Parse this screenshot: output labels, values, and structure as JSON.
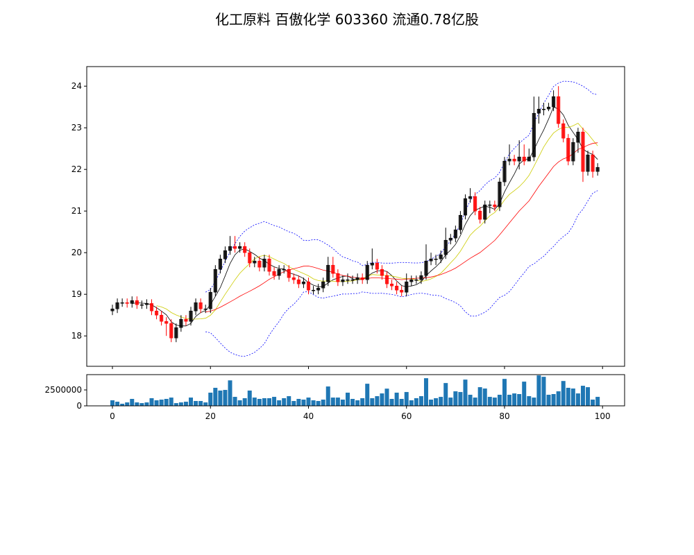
{
  "chart_data": {
    "type": "candlestick",
    "title": "化工原料 百傲化学 603360 流通0.78亿股",
    "colors": {
      "up": "#000000",
      "down": "#ff0000",
      "ma5": "#000000",
      "ma10": "#cccc00",
      "ma20": "#ff0000",
      "bollinger": "#0000ff",
      "volume": "#1f77b4"
    },
    "price_ylim": [
      17.27,
      24.47
    ],
    "volume_ylim": [
      0,
      4900000
    ],
    "xlim": [
      -5.24,
      104.5
    ],
    "price_yticks": [
      18,
      19,
      20,
      21,
      22,
      23,
      24
    ],
    "volume_yticks": [
      0,
      2500000
    ],
    "xticks": [
      0,
      20,
      40,
      60,
      80,
      100
    ],
    "overlays": [
      "MA5",
      "MA10",
      "MA20",
      "Bollinger(20,2)"
    ],
    "open": [
      18.6,
      18.65,
      18.8,
      18.8,
      18.78,
      18.85,
      18.75,
      18.75,
      18.78,
      18.6,
      18.5,
      18.35,
      18.3,
      17.95,
      18.2,
      18.4,
      18.35,
      18.6,
      18.8,
      18.65,
      18.65,
      19.05,
      19.6,
      19.85,
      20.05,
      20.15,
      20.1,
      20.15,
      20.0,
      19.75,
      19.8,
      19.65,
      19.85,
      19.55,
      19.45,
      19.6,
      19.6,
      19.4,
      19.35,
      19.25,
      19.3,
      19.1,
      19.1,
      19.15,
      19.3,
      19.7,
      19.5,
      19.3,
      19.35,
      19.35,
      19.35,
      19.4,
      19.35,
      19.7,
      19.75,
      19.6,
      19.45,
      19.25,
      19.2,
      19.1,
      19.05,
      19.3,
      19.35,
      19.35,
      19.45,
      19.8,
      19.85,
      19.85,
      19.95,
      20.3,
      20.35,
      20.55,
      20.9,
      21.3,
      21.35,
      21.0,
      20.8,
      21.15,
      21.15,
      21.1,
      21.7,
      22.2,
      22.25,
      22.2,
      22.3,
      22.2,
      22.3,
      23.35,
      23.45,
      23.45,
      23.5,
      23.75,
      23.1,
      22.75,
      22.2,
      22.65,
      22.9,
      21.95,
      22.35,
      21.95
    ],
    "high": [
      18.75,
      18.9,
      18.9,
      18.9,
      18.95,
      18.95,
      18.85,
      18.88,
      18.88,
      18.7,
      18.6,
      18.45,
      18.4,
      18.3,
      18.5,
      18.5,
      18.7,
      18.9,
      18.9,
      18.75,
      19.15,
      19.7,
      19.95,
      20.15,
      20.4,
      20.4,
      20.25,
      20.25,
      20.1,
      19.9,
      19.9,
      19.95,
      19.95,
      19.65,
      19.7,
      19.7,
      19.7,
      19.5,
      19.45,
      19.4,
      19.4,
      19.2,
      19.25,
      19.4,
      19.9,
      19.9,
      19.6,
      19.45,
      19.5,
      19.45,
      19.5,
      19.5,
      19.8,
      20.1,
      19.85,
      19.7,
      19.55,
      19.35,
      19.3,
      19.2,
      19.5,
      19.45,
      19.45,
      19.55,
      20.2,
      20.0,
      19.95,
      20.05,
      20.6,
      20.45,
      20.65,
      21.0,
      21.4,
      21.55,
      21.45,
      21.1,
      21.25,
      21.25,
      21.25,
      21.8,
      22.3,
      22.6,
      22.35,
      22.7,
      22.6,
      22.5,
      23.75,
      23.75,
      23.6,
      23.6,
      23.9,
      24.0,
      23.2,
      22.85,
      22.75,
      23.0,
      23.0,
      22.45,
      22.45,
      22.15
    ],
    "low": [
      18.5,
      18.55,
      18.7,
      18.68,
      18.68,
      18.65,
      18.65,
      18.65,
      18.5,
      18.4,
      18.25,
      18.0,
      17.85,
      17.85,
      18.1,
      18.25,
      18.25,
      18.5,
      18.55,
      18.55,
      18.55,
      18.95,
      19.5,
      19.75,
      19.95,
      20.0,
      20.0,
      19.9,
      19.65,
      19.65,
      19.55,
      19.55,
      19.45,
      19.35,
      19.35,
      19.5,
      19.3,
      19.25,
      19.15,
      19.15,
      19.0,
      19.0,
      19.0,
      19.05,
      19.2,
      19.4,
      19.2,
      19.2,
      19.25,
      19.25,
      19.25,
      19.25,
      19.25,
      19.6,
      19.5,
      19.35,
      19.15,
      19.1,
      19.0,
      18.95,
      18.95,
      19.2,
      19.25,
      19.25,
      19.35,
      19.7,
      19.7,
      19.75,
      19.85,
      20.2,
      20.25,
      20.45,
      20.8,
      21.2,
      20.9,
      20.7,
      20.7,
      20.95,
      21.0,
      21.0,
      21.6,
      22.1,
      22.1,
      22.0,
      22.1,
      22.2,
      22.2,
      23.1,
      23.3,
      23.4,
      23.4,
      23.0,
      22.65,
      22.1,
      22.1,
      22.4,
      21.7,
      21.85,
      21.8,
      21.85
    ],
    "close": [
      18.65,
      18.8,
      18.8,
      18.78,
      18.85,
      18.75,
      18.75,
      18.78,
      18.6,
      18.5,
      18.35,
      18.3,
      17.95,
      18.2,
      18.4,
      18.35,
      18.6,
      18.8,
      18.65,
      18.65,
      19.05,
      19.6,
      19.85,
      20.05,
      20.15,
      20.1,
      20.15,
      20.0,
      19.75,
      19.8,
      19.65,
      19.85,
      19.55,
      19.45,
      19.6,
      19.6,
      19.4,
      19.35,
      19.25,
      19.3,
      19.1,
      19.1,
      19.15,
      19.3,
      19.7,
      19.5,
      19.3,
      19.35,
      19.35,
      19.35,
      19.4,
      19.35,
      19.7,
      19.75,
      19.6,
      19.45,
      19.25,
      19.2,
      19.1,
      19.05,
      19.3,
      19.35,
      19.35,
      19.45,
      19.8,
      19.85,
      19.85,
      19.95,
      20.3,
      20.35,
      20.55,
      20.9,
      21.3,
      21.35,
      21.0,
      20.8,
      21.15,
      21.15,
      21.1,
      21.7,
      22.2,
      22.25,
      22.2,
      22.3,
      22.2,
      22.3,
      23.35,
      23.45,
      23.45,
      23.5,
      23.75,
      23.1,
      22.75,
      22.2,
      22.65,
      22.9,
      21.95,
      22.35,
      21.95,
      22.05
    ],
    "volume": [
      870000,
      650000,
      330000,
      540000,
      1090000,
      540000,
      430000,
      540000,
      1200000,
      870000,
      980000,
      1090000,
      1300000,
      430000,
      540000,
      650000,
      1300000,
      760000,
      760000,
      540000,
      2070000,
      2830000,
      2400000,
      2500000,
      4000000,
      1410000,
      870000,
      1200000,
      2400000,
      1300000,
      1090000,
      1200000,
      1200000,
      1410000,
      870000,
      1200000,
      1520000,
      760000,
      1090000,
      980000,
      1300000,
      870000,
      760000,
      980000,
      3040000,
      1300000,
      1300000,
      980000,
      2070000,
      1090000,
      870000,
      1200000,
      3470000,
      1200000,
      1520000,
      1950000,
      2700000,
      1090000,
      2070000,
      1090000,
      2170000,
      870000,
      1200000,
      1520000,
      4340000,
      980000,
      1200000,
      1410000,
      3580000,
      1300000,
      2280000,
      2170000,
      4120000,
      1740000,
      1300000,
      2930000,
      2720000,
      1410000,
      1300000,
      1740000,
      4230000,
      1740000,
      1950000,
      1850000,
      3800000,
      1520000,
      1300000,
      4780000,
      4560000,
      1740000,
      1850000,
      2280000,
      3900000,
      2830000,
      2720000,
      1950000,
      3150000,
      2930000,
      980000,
      1410000
    ]
  }
}
